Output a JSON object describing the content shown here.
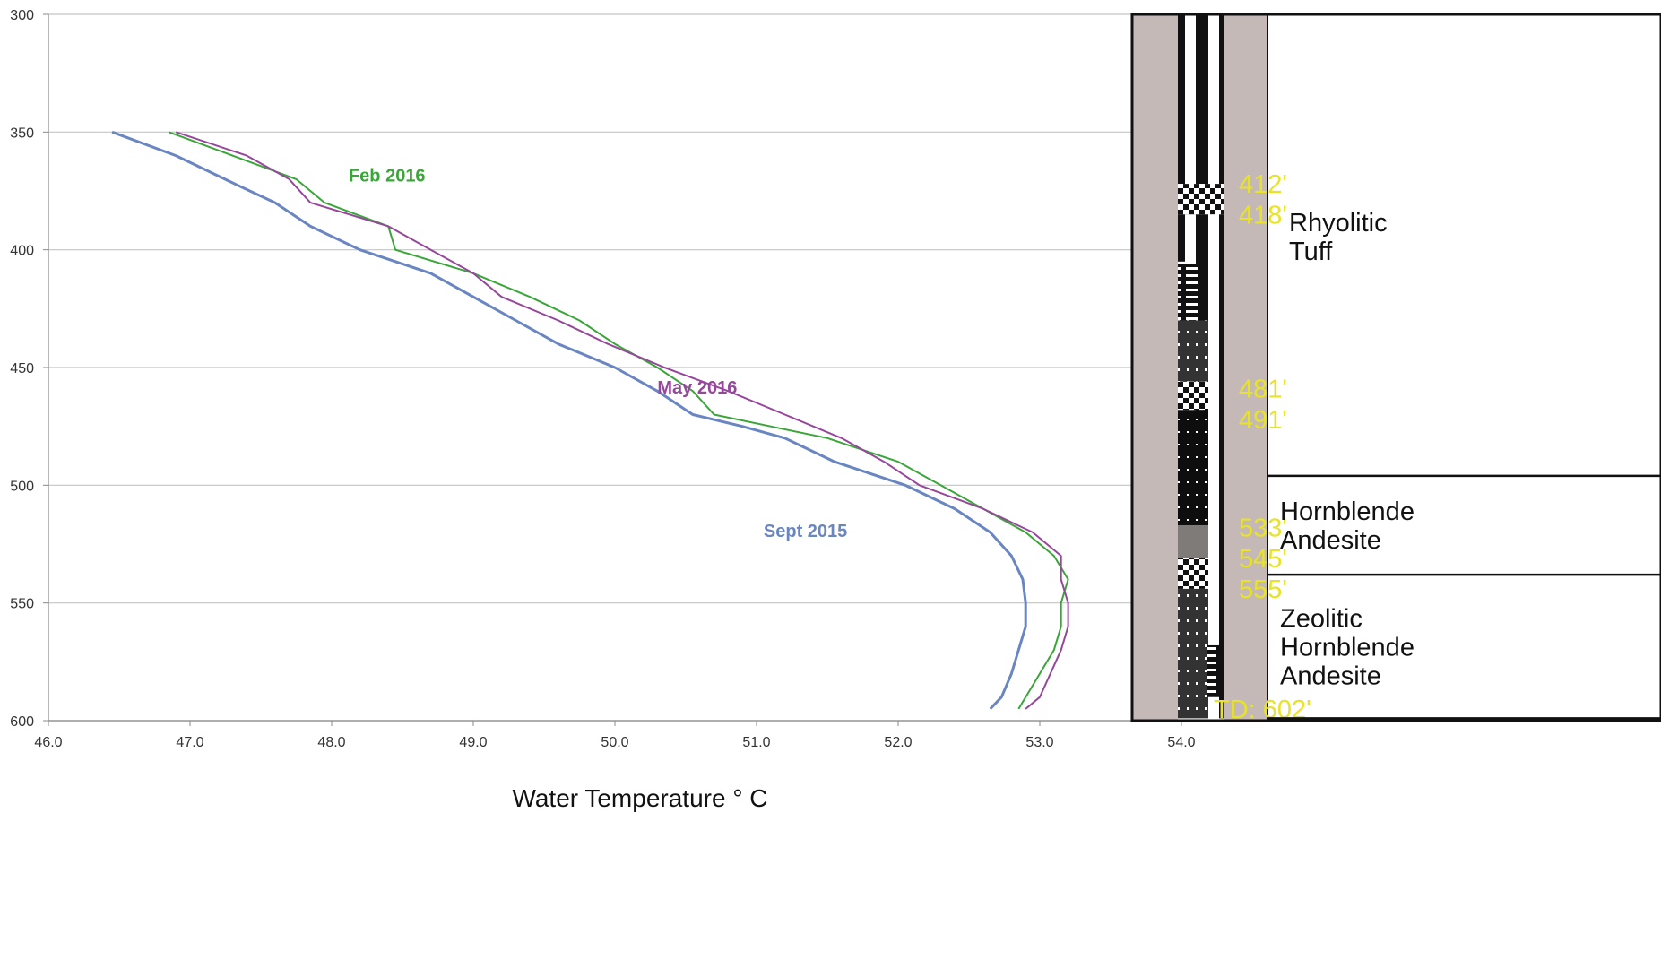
{
  "chart_data": {
    "type": "line",
    "xlabel": "Water Temperature ° C",
    "ylabel": "",
    "xlim": [
      46.0,
      54.0
    ],
    "ylim": [
      600,
      300
    ],
    "x_ticks": [
      "46.0",
      "47.0",
      "48.0",
      "49.0",
      "50.0",
      "51.0",
      "52.0",
      "53.0",
      "54.0"
    ],
    "y_ticks": [
      "300",
      "350",
      "400",
      "450",
      "500",
      "550",
      "600"
    ],
    "grid": "horizontal",
    "series": [
      {
        "name": "Sept 2015",
        "color": "#6a86c2",
        "label_at": [
          51.05,
          522
        ],
        "points": [
          [
            46.45,
            350
          ],
          [
            46.9,
            360
          ],
          [
            47.35,
            373
          ],
          [
            47.6,
            380
          ],
          [
            47.85,
            390
          ],
          [
            48.2,
            400
          ],
          [
            48.45,
            405
          ],
          [
            48.7,
            410
          ],
          [
            49.0,
            420
          ],
          [
            49.3,
            430
          ],
          [
            49.6,
            440
          ],
          [
            50.0,
            450
          ],
          [
            50.3,
            460
          ],
          [
            50.55,
            470
          ],
          [
            50.9,
            475
          ],
          [
            51.2,
            480
          ],
          [
            51.55,
            490
          ],
          [
            52.05,
            500
          ],
          [
            52.4,
            510
          ],
          [
            52.65,
            520
          ],
          [
            52.8,
            530
          ],
          [
            52.88,
            540
          ],
          [
            52.9,
            550
          ],
          [
            52.9,
            560
          ],
          [
            52.8,
            580
          ],
          [
            52.73,
            590
          ],
          [
            52.65,
            595
          ]
        ]
      },
      {
        "name": "Feb 2016",
        "color": "#3aa63a",
        "label_at": [
          48.12,
          371
        ],
        "points": [
          [
            46.85,
            350
          ],
          [
            47.3,
            360
          ],
          [
            47.75,
            370
          ],
          [
            47.95,
            380
          ],
          [
            48.4,
            390
          ],
          [
            48.45,
            400
          ],
          [
            49.0,
            410
          ],
          [
            49.4,
            420
          ],
          [
            49.75,
            430
          ],
          [
            50.0,
            440
          ],
          [
            50.3,
            450
          ],
          [
            50.55,
            460
          ],
          [
            50.7,
            470
          ],
          [
            51.1,
            475
          ],
          [
            51.5,
            480
          ],
          [
            52.0,
            490
          ],
          [
            52.3,
            500
          ],
          [
            52.6,
            510
          ],
          [
            52.9,
            520
          ],
          [
            53.1,
            530
          ],
          [
            53.2,
            540
          ],
          [
            53.15,
            550
          ],
          [
            53.15,
            560
          ],
          [
            53.1,
            570
          ],
          [
            53.0,
            580
          ],
          [
            52.85,
            595
          ]
        ]
      },
      {
        "name": "May 2016",
        "color": "#96479c",
        "label_at": [
          50.3,
          461
        ],
        "points": [
          [
            46.9,
            350
          ],
          [
            47.4,
            360
          ],
          [
            47.7,
            370
          ],
          [
            47.85,
            380
          ],
          [
            48.4,
            390
          ],
          [
            48.7,
            400
          ],
          [
            49.0,
            410
          ],
          [
            49.2,
            420
          ],
          [
            49.6,
            430
          ],
          [
            49.95,
            440
          ],
          [
            50.35,
            450
          ],
          [
            50.8,
            460
          ],
          [
            51.2,
            470
          ],
          [
            51.6,
            480
          ],
          [
            51.9,
            490
          ],
          [
            52.15,
            500
          ],
          [
            52.6,
            510
          ],
          [
            52.95,
            520
          ],
          [
            53.15,
            530
          ],
          [
            53.15,
            540
          ],
          [
            53.2,
            550
          ],
          [
            53.2,
            560
          ],
          [
            53.15,
            570
          ],
          [
            53.0,
            590
          ],
          [
            52.9,
            595
          ]
        ]
      }
    ]
  },
  "lithology": {
    "units": [
      {
        "name": "rhyolitic-tuff",
        "lines": [
          "Rhyolitic",
          "Tuff"
        ],
        "top": 300,
        "bottom": 496
      },
      {
        "name": "hornblende-andesite",
        "lines": [
          "Hornblende",
          "Andesite"
        ],
        "top": 496,
        "bottom": 538
      },
      {
        "name": "zeolitic-hornblende-andesite",
        "lines": [
          "Zeolitic",
          "Hornblende",
          "Andesite"
        ],
        "top": 538,
        "bottom": 599
      }
    ],
    "depth_labels": [
      {
        "text": "412'",
        "depth": 372
      },
      {
        "text": "418'",
        "depth": 385
      },
      {
        "text": "481'",
        "depth": 459
      },
      {
        "text": "491'",
        "depth": 472
      },
      {
        "text": "533'",
        "depth": 518
      },
      {
        "text": "545'",
        "depth": 531
      },
      {
        "text": "555'",
        "depth": 544
      },
      {
        "text": "TD: 602'",
        "depth": 595
      }
    ]
  }
}
